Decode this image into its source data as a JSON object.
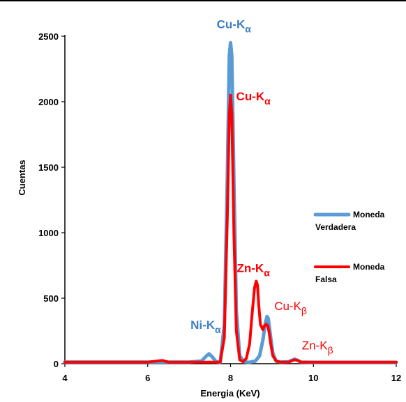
{
  "chart_data": {
    "type": "line",
    "title": "",
    "xlabel": "Energia (KeV)",
    "ylabel": "Cuentas",
    "xlim": [
      4,
      12
    ],
    "ylim": [
      0,
      2500
    ],
    "xticks": [
      "4",
      "6",
      "8",
      "10",
      "12"
    ],
    "yticks": [
      "0",
      "500",
      "1000",
      "1500",
      "2000",
      "2500"
    ],
    "grid": false,
    "legend_position": "right",
    "series": [
      {
        "name_lines": [
          "Moneda",
          "Verdadera"
        ],
        "color": "#5B9BD5",
        "x": [
          4.0,
          5.0,
          6.0,
          7.0,
          7.3,
          7.42,
          7.48,
          7.55,
          7.65,
          7.75,
          7.85,
          7.92,
          7.97,
          8.0,
          8.03,
          8.08,
          8.14,
          8.22,
          8.32,
          8.45,
          8.6,
          8.7,
          8.78,
          8.84,
          8.88,
          8.91,
          8.96,
          9.02,
          9.1,
          9.2,
          9.4,
          9.55,
          9.62,
          9.7,
          10.0,
          11.0,
          12.0
        ],
        "y": [
          12,
          12,
          12,
          12,
          20,
          60,
          75,
          55,
          15,
          10,
          300,
          1400,
          2350,
          2450,
          2350,
          1400,
          400,
          60,
          15,
          10,
          20,
          60,
          180,
          310,
          360,
          345,
          220,
          80,
          20,
          12,
          15,
          35,
          25,
          12,
          10,
          10,
          10
        ]
      },
      {
        "name_lines": [
          "Moneda",
          "Falsa"
        ],
        "color": "#FF0000",
        "x": [
          4.0,
          5.0,
          6.0,
          6.35,
          6.5,
          7.0,
          7.5,
          7.75,
          7.85,
          7.92,
          7.97,
          8.0,
          8.03,
          8.08,
          8.14,
          8.22,
          8.3,
          8.38,
          8.46,
          8.52,
          8.58,
          8.62,
          8.65,
          8.68,
          8.72,
          8.78,
          8.82,
          8.86,
          8.9,
          8.93,
          8.97,
          9.02,
          9.1,
          9.2,
          9.4,
          9.55,
          9.62,
          9.7,
          10.0,
          11.0,
          12.0
        ],
        "y": [
          12,
          12,
          12,
          25,
          12,
          12,
          12,
          12,
          200,
          1100,
          1900,
          2050,
          1900,
          1000,
          250,
          30,
          15,
          40,
          150,
          380,
          580,
          630,
          600,
          450,
          300,
          260,
          290,
          300,
          290,
          240,
          150,
          60,
          20,
          12,
          12,
          30,
          25,
          12,
          12,
          12,
          12
        ]
      }
    ],
    "annotations": [
      {
        "main": "Cu-K",
        "sub": "α",
        "color": "#3C7EC4",
        "x": 8.08,
        "y": 2560
      },
      {
        "main": "Cu-K",
        "sub": "α",
        "color": "#FF0000",
        "x": 8.55,
        "y": 2010
      },
      {
        "main": "Zn-K",
        "sub": "α",
        "color": "#FF0000",
        "x": 8.55,
        "y": 700
      },
      {
        "main": "Cu-K",
        "sub": "β",
        "color": "#FF0000",
        "x": 9.45,
        "y": 410
      },
      {
        "main": "Ni-K",
        "sub": "α",
        "color": "#3C7EC4",
        "x": 7.4,
        "y": 265
      },
      {
        "main": "Zn-K",
        "sub": "β",
        "color": "#FF0000",
        "x": 10.1,
        "y": 110
      }
    ]
  }
}
